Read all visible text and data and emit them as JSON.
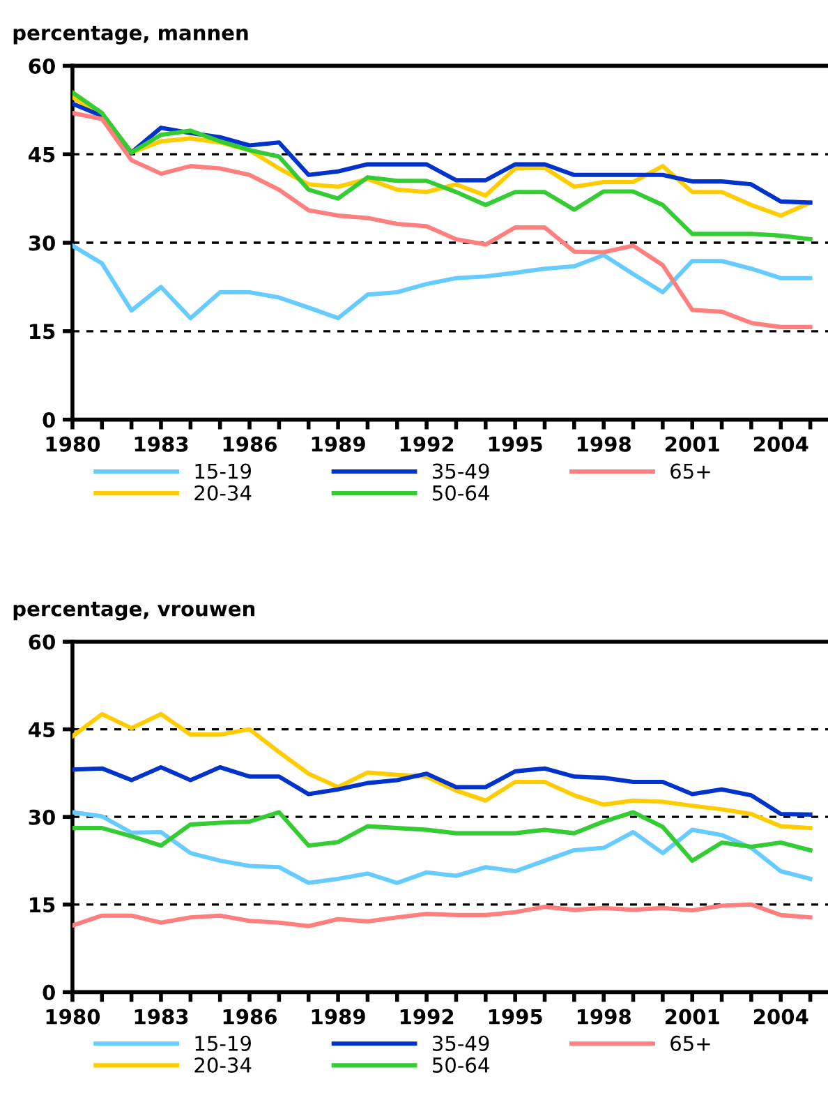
{
  "chart_data": [
    {
      "type": "line",
      "title": "percentage, mannen",
      "x": [
        1980,
        1981,
        1982,
        1983,
        1984,
        1985,
        1986,
        1987,
        1988,
        1989,
        1990,
        1991,
        1992,
        1993,
        1994,
        1995,
        1996,
        1997,
        1998,
        1999,
        2000,
        2001,
        2002,
        2003,
        2004,
        2005
      ],
      "series": [
        {
          "name": "15-19",
          "color": "#66ccff",
          "values": [
            29.5,
            26.5,
            18.5,
            22.5,
            17.2,
            21.6,
            21.6,
            20.7,
            19.0,
            17.2,
            21.2,
            21.6,
            23.0,
            24.0,
            24.3,
            24.9,
            25.6,
            26.0,
            27.9,
            24.7,
            21.6,
            26.9,
            26.9,
            25.6,
            24.0,
            24.0
          ]
        },
        {
          "name": "20-34",
          "color": "#ffcc00",
          "values": [
            54.7,
            51.5,
            45.3,
            47.2,
            47.7,
            47.0,
            45.7,
            42.6,
            39.9,
            39.5,
            40.8,
            39.0,
            38.6,
            39.9,
            38.0,
            42.6,
            42.7,
            39.5,
            40.3,
            40.3,
            43.0,
            38.6,
            38.6,
            36.4,
            34.6,
            36.8
          ]
        },
        {
          "name": "35-49",
          "color": "#0033cc",
          "values": [
            53.6,
            51.5,
            45.3,
            49.5,
            48.6,
            47.9,
            46.5,
            47.0,
            41.5,
            42.1,
            43.3,
            43.3,
            43.3,
            40.6,
            40.6,
            43.3,
            43.3,
            41.5,
            41.5,
            41.5,
            41.5,
            40.4,
            40.4,
            39.9,
            37.0,
            36.8
          ]
        },
        {
          "name": "50-64",
          "color": "#33cc33",
          "values": [
            55.5,
            52.0,
            45.3,
            48.3,
            49.0,
            47.2,
            45.7,
            44.6,
            39.0,
            37.5,
            41.1,
            40.5,
            40.5,
            38.6,
            36.4,
            38.6,
            38.6,
            35.6,
            38.7,
            38.7,
            36.4,
            31.5,
            31.5,
            31.5,
            31.2,
            30.6
          ]
        },
        {
          "name": "65+",
          "color": "#ff7f7f",
          "values": [
            52.0,
            51.0,
            44.0,
            41.7,
            43.0,
            42.6,
            41.5,
            39.0,
            35.5,
            34.6,
            34.2,
            33.2,
            32.8,
            30.6,
            29.7,
            32.6,
            32.6,
            28.5,
            28.4,
            29.5,
            26.2,
            18.6,
            18.3,
            16.4,
            15.7,
            15.7
          ]
        }
      ],
      "xlim": [
        1980,
        2005.6
      ],
      "xticks": [
        1980,
        {
          "value": 1981,
          "label": null
        },
        {
          "value": 1982,
          "label": null
        },
        1983,
        {
          "value": 1984,
          "label": null
        },
        {
          "value": 1985,
          "label": null
        },
        1986,
        {
          "value": 1987,
          "label": null
        },
        {
          "value": 1988,
          "label": null
        },
        1989,
        {
          "value": 1990,
          "label": null
        },
        {
          "value": 1991,
          "label": null
        },
        1992,
        {
          "value": 1993,
          "label": null
        },
        {
          "value": 1994,
          "label": null
        },
        1995,
        {
          "value": 1996,
          "label": null
        },
        {
          "value": 1997,
          "label": null
        },
        1998,
        {
          "value": 1999,
          "label": null
        },
        {
          "value": 2000,
          "label": null
        },
        2001,
        {
          "value": 2002,
          "label": null
        },
        {
          "value": 2003,
          "label": null
        },
        2004,
        {
          "value": 2005,
          "label": null
        }
      ],
      "ylim": [
        0,
        60
      ],
      "yticks": [
        0,
        15,
        30,
        45,
        60
      ],
      "grid": "y",
      "legend": "bottom"
    },
    {
      "type": "line",
      "title": "percentage, vrouwen",
      "x": [
        1980,
        1981,
        1982,
        1983,
        1984,
        1985,
        1986,
        1987,
        1988,
        1989,
        1990,
        1991,
        1992,
        1993,
        1994,
        1995,
        1996,
        1997,
        1998,
        1999,
        2000,
        2001,
        2002,
        2003,
        2004,
        2005
      ],
      "series": [
        {
          "name": "15-19",
          "color": "#66ccff",
          "values": [
            30.8,
            30.1,
            27.3,
            27.4,
            23.8,
            22.5,
            21.6,
            21.4,
            18.7,
            19.4,
            20.3,
            18.7,
            20.5,
            19.9,
            21.4,
            20.7,
            22.5,
            24.3,
            24.7,
            27.4,
            23.8,
            27.8,
            26.9,
            24.7,
            20.7,
            19.4
          ]
        },
        {
          "name": "20-34",
          "color": "#ffcc00",
          "values": [
            43.8,
            47.6,
            45.2,
            47.6,
            44.1,
            44.1,
            45.0,
            41.1,
            37.4,
            35.1,
            37.6,
            37.2,
            36.9,
            34.5,
            32.8,
            36.0,
            36.0,
            33.7,
            32.1,
            32.8,
            32.6,
            31.9,
            31.3,
            30.5,
            28.4,
            28.1
          ]
        },
        {
          "name": "35-49",
          "color": "#0033cc",
          "values": [
            38.1,
            38.3,
            36.3,
            38.5,
            36.3,
            38.5,
            36.9,
            36.9,
            33.9,
            34.7,
            35.8,
            36.3,
            37.4,
            35.1,
            35.1,
            37.8,
            38.3,
            36.9,
            36.7,
            36.0,
            36.0,
            33.9,
            34.7,
            33.7,
            30.5,
            30.4
          ]
        },
        {
          "name": "50-64",
          "color": "#33cc33",
          "values": [
            28.1,
            28.1,
            26.7,
            25.1,
            28.7,
            29.0,
            29.2,
            30.8,
            25.1,
            25.7,
            28.4,
            28.1,
            27.8,
            27.2,
            27.2,
            27.2,
            27.8,
            27.2,
            29.2,
            30.8,
            28.3,
            22.5,
            25.6,
            24.9,
            25.6,
            24.3
          ]
        },
        {
          "name": "65+",
          "color": "#ff7f7f",
          "values": [
            11.4,
            13.1,
            13.1,
            11.9,
            12.8,
            13.1,
            12.2,
            11.9,
            11.3,
            12.5,
            12.1,
            12.8,
            13.4,
            13.2,
            13.2,
            13.7,
            14.6,
            14.1,
            14.4,
            14.1,
            14.4,
            14.0,
            14.8,
            15.0,
            13.2,
            12.8
          ]
        }
      ],
      "xlim": [
        1980,
        2005.6
      ],
      "xticks": [
        1980,
        {
          "value": 1981,
          "label": null
        },
        {
          "value": 1982,
          "label": null
        },
        1983,
        {
          "value": 1984,
          "label": null
        },
        {
          "value": 1985,
          "label": null
        },
        1986,
        {
          "value": 1987,
          "label": null
        },
        {
          "value": 1988,
          "label": null
        },
        1989,
        {
          "value": 1990,
          "label": null
        },
        {
          "value": 1991,
          "label": null
        },
        1992,
        {
          "value": 1993,
          "label": null
        },
        {
          "value": 1994,
          "label": null
        },
        1995,
        {
          "value": 1996,
          "label": null
        },
        {
          "value": 1997,
          "label": null
        },
        1998,
        {
          "value": 1999,
          "label": null
        },
        {
          "value": 2000,
          "label": null
        },
        2001,
        {
          "value": 2002,
          "label": null
        },
        {
          "value": 2003,
          "label": null
        },
        2004,
        {
          "value": 2005,
          "label": null
        }
      ],
      "ylim": [
        0,
        60
      ],
      "yticks": [
        0,
        15,
        30,
        45,
        60
      ],
      "grid": "y",
      "legend": "bottom"
    }
  ]
}
